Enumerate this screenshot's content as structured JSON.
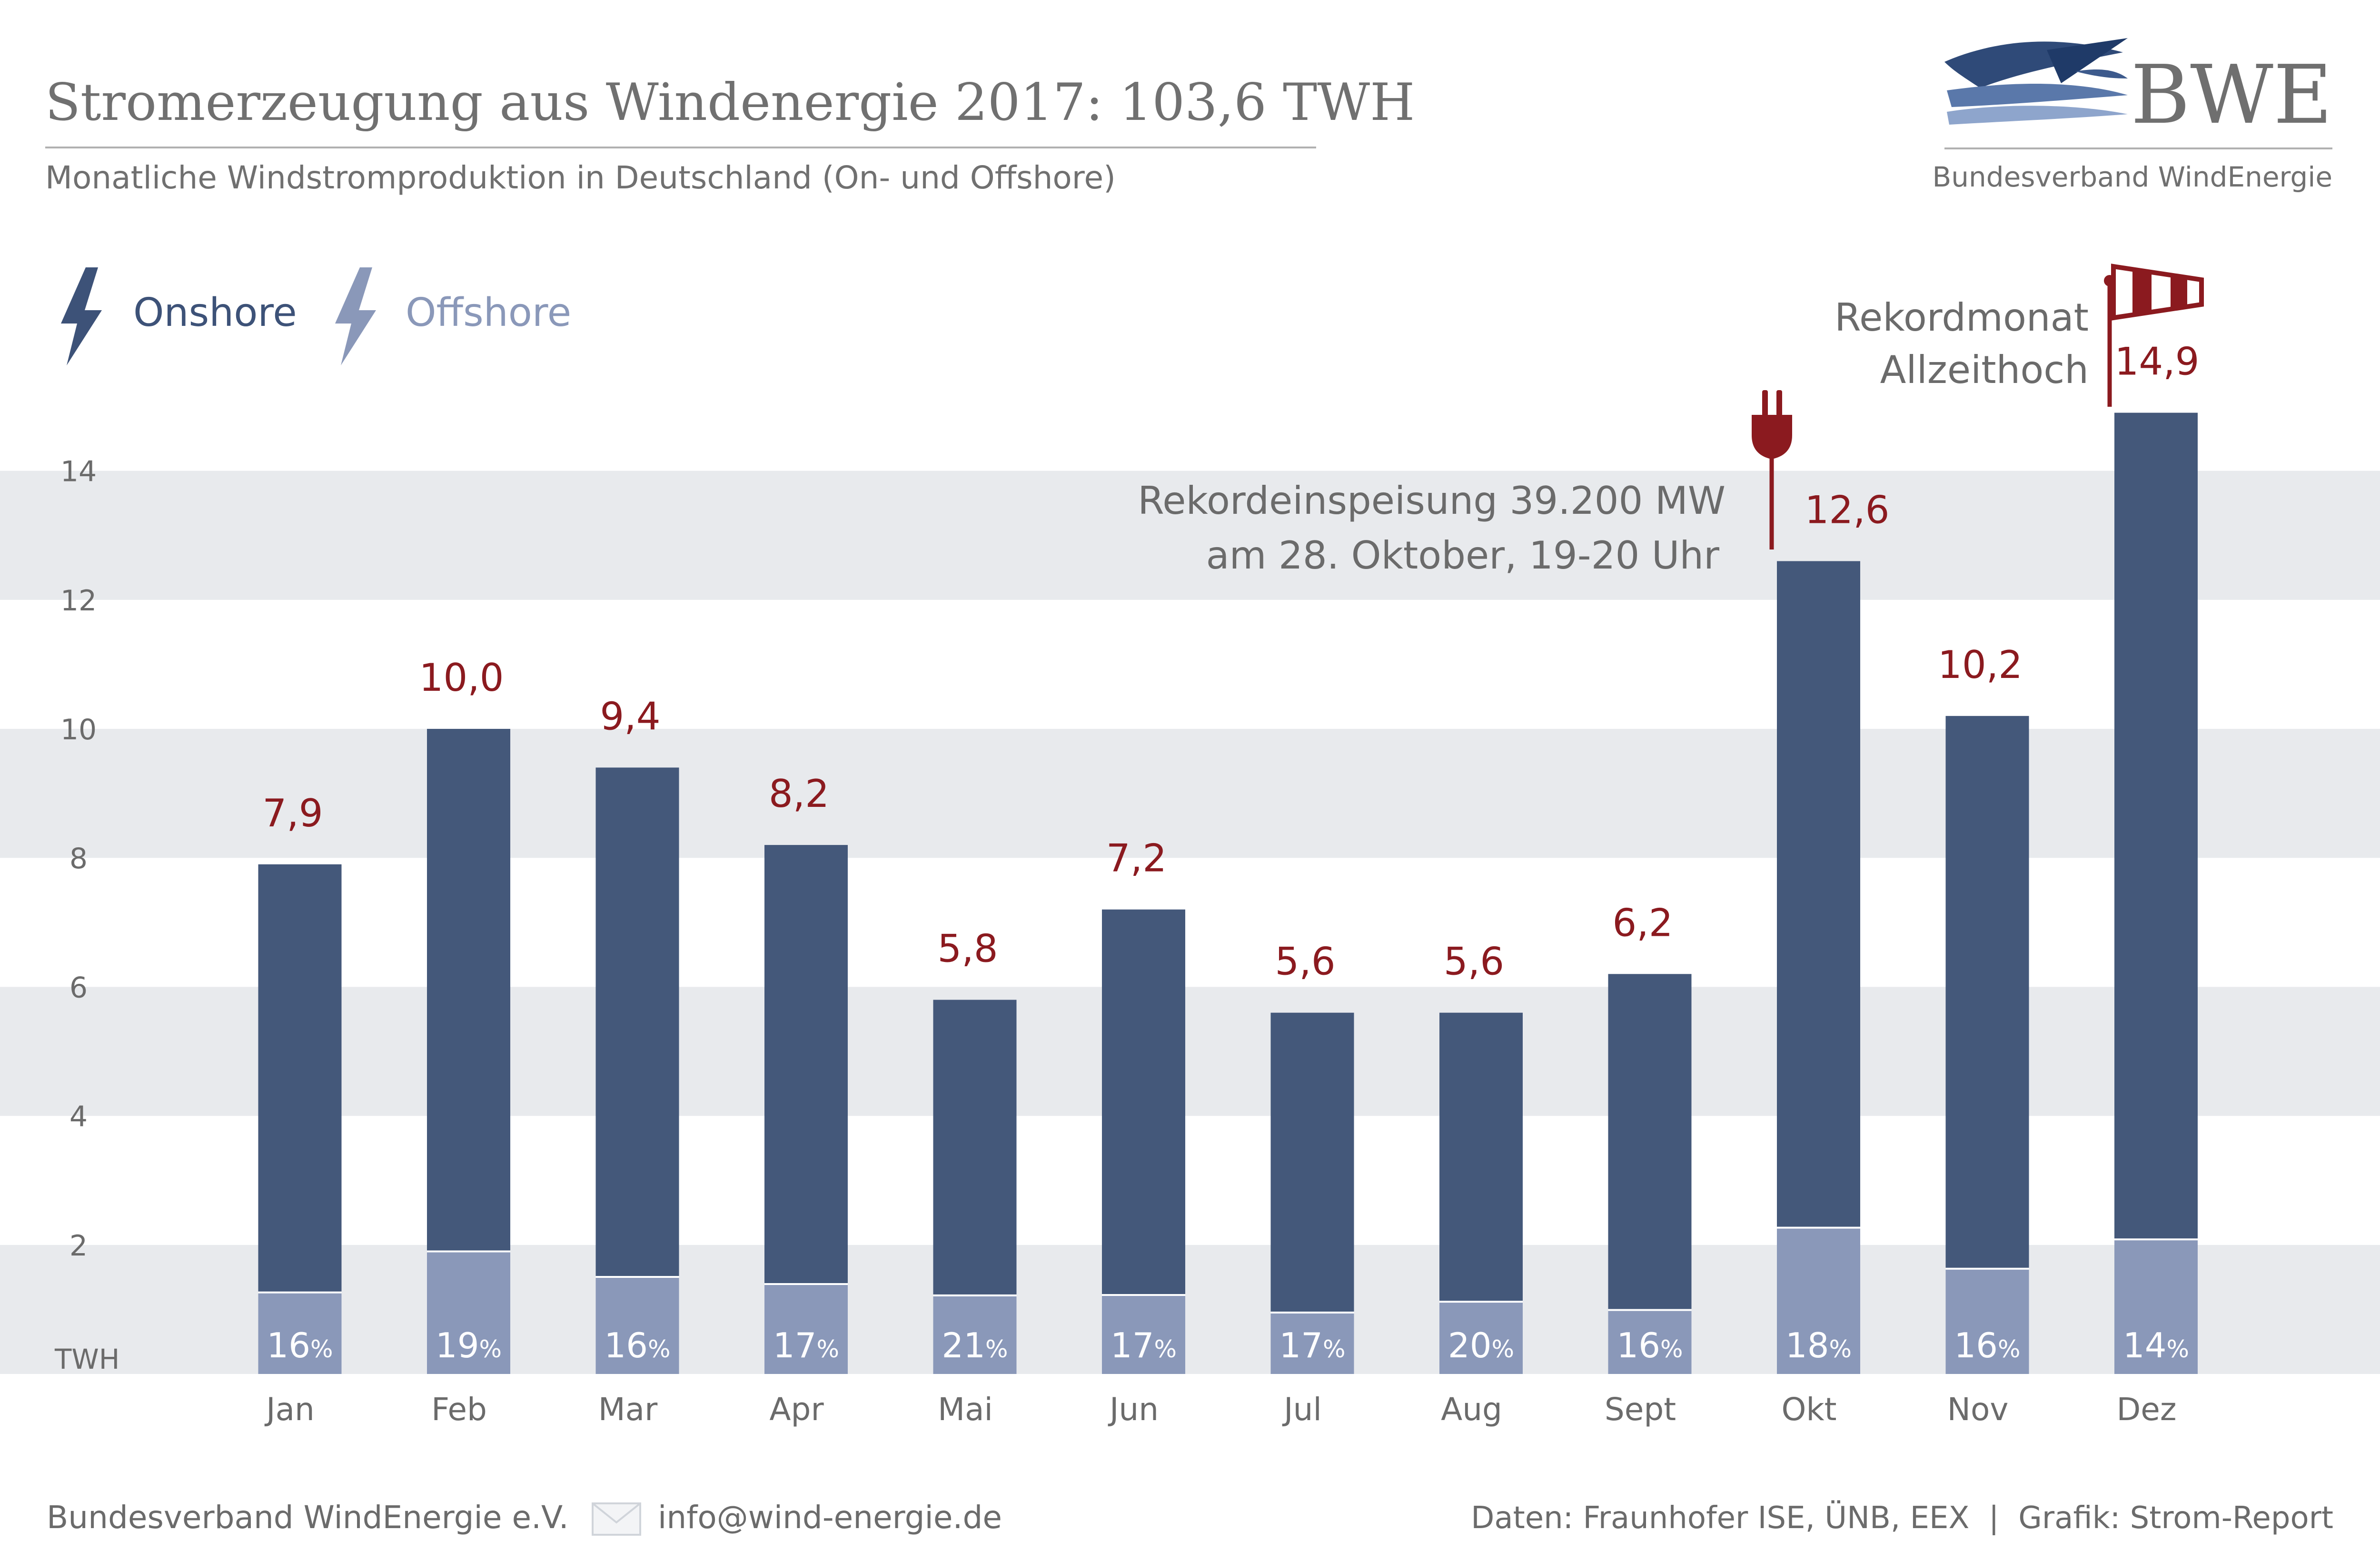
{
  "header": {
    "title": "Stromerzeugung aus Windenergie 2017: 103,6 TWH",
    "subtitle": "Monatliche Windstromproduktion in Deutschland (On- und Offshore)"
  },
  "logo": {
    "wordmark": "BWE",
    "tagline": "Bundesverband WindEnergie"
  },
  "legend": {
    "onshore": "Onshore",
    "offshore": "Offshore"
  },
  "annotations": {
    "oct_line1": "Rekordeinspeisung 39.200 MW",
    "oct_line2": "am 28. Oktober, 19-20 Uhr",
    "dec_line1": "Rekordmonat",
    "dec_line2": "Allzeithoch"
  },
  "footer": {
    "org": "Bundesverband WindEnergie e.V.",
    "email": "info@wind-energie.de",
    "source": "Daten: Fraunhofer ISE, ÜNB, EEX  |  Grafik: Strom-Report"
  },
  "colors": {
    "onshore": "#44587a",
    "offshore": "#8a98b9",
    "total_label": "#8b1a1f",
    "band": "#e8eaed",
    "text_gray": "#6b6b6b"
  },
  "chart_data": {
    "type": "bar",
    "stacked": true,
    "categories": [
      "Jan",
      "Feb",
      "Mar",
      "Apr",
      "Mai",
      "Jun",
      "Jul",
      "Aug",
      "Sept",
      "Okt",
      "Nov",
      "Dez"
    ],
    "totals": [
      7.9,
      10.0,
      9.4,
      8.2,
      5.8,
      7.2,
      5.6,
      5.6,
      6.2,
      12.6,
      10.2,
      14.9
    ],
    "total_labels": [
      "7,9",
      "10,0",
      "9,4",
      "8,2",
      "5,8",
      "7,2",
      "5,6",
      "5,6",
      "6,2",
      "12,6",
      "10,2",
      "14,9"
    ],
    "offshore_share_labels": [
      "16%",
      "19%",
      "16%",
      "17%",
      "21%",
      "17%",
      "17%",
      "20%",
      "16%",
      "18%",
      "16%",
      "14%"
    ],
    "offshore_share": [
      0.16,
      0.19,
      0.16,
      0.17,
      0.21,
      0.17,
      0.17,
      0.2,
      0.16,
      0.18,
      0.16,
      0.14
    ],
    "y_ticks": [
      "2",
      "4",
      "6",
      "8",
      "10",
      "12",
      "14"
    ],
    "y_tick_values": [
      2,
      4,
      6,
      8,
      10,
      12,
      14
    ],
    "ylabel": "TWH",
    "ylim": [
      0,
      16
    ],
    "grid": "alternating bands"
  }
}
